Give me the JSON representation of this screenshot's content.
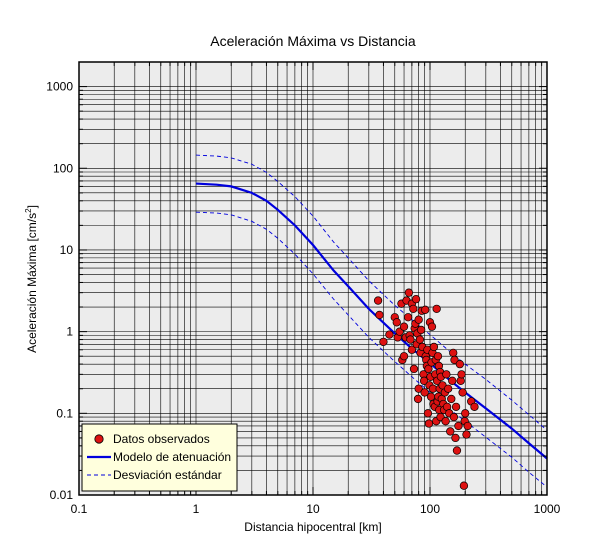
{
  "chart_data": {
    "type": "scatter",
    "title": "Aceleración Máxima vs Distancia",
    "xlabel": "Distancia hipocentral [km]",
    "ylabel_main": "Aceleración Máxima [cm/s",
    "ylabel_sup": "2",
    "ylabel_close": "]",
    "xscale": "log",
    "yscale": "log",
    "xlim": [
      0.1,
      1000
    ],
    "ylim": [
      0.01,
      2000
    ],
    "grid": true,
    "legend_position": "bottom-left",
    "x_ticks": [
      {
        "value": 0.1,
        "label": "0.1"
      },
      {
        "value": 1,
        "label": "1"
      },
      {
        "value": 10,
        "label": "10"
      },
      {
        "value": 100,
        "label": "100"
      },
      {
        "value": 1000,
        "label": "1000"
      }
    ],
    "y_ticks": [
      {
        "value": 0.01,
        "label": "0.01"
      },
      {
        "value": 0.1,
        "label": "0.1"
      },
      {
        "value": 1,
        "label": "1"
      },
      {
        "value": 10,
        "label": "10"
      },
      {
        "value": 100,
        "label": "100"
      },
      {
        "value": 1000,
        "label": "1000"
      }
    ],
    "colors": {
      "plot_background": "#ececec",
      "points": "#dd1111",
      "model": "#0000dd",
      "deviation": "#0000dd",
      "legend_background": "#ffffdd"
    },
    "series": [
      {
        "name": "Datos observados",
        "kind": "points",
        "points": [
          [
            36,
            2.4
          ],
          [
            37,
            1.6
          ],
          [
            40,
            0.75
          ],
          [
            45,
            0.92
          ],
          [
            50,
            1.5
          ],
          [
            52,
            1.3
          ],
          [
            53,
            0.85
          ],
          [
            55,
            1.0
          ],
          [
            57,
            2.2
          ],
          [
            58,
            0.45
          ],
          [
            60,
            0.5
          ],
          [
            60,
            1.15
          ],
          [
            62,
            0.85
          ],
          [
            63,
            2.4
          ],
          [
            65,
            1.5
          ],
          [
            66,
            3.0
          ],
          [
            67,
            0.9
          ],
          [
            68,
            0.8
          ],
          [
            70,
            2.2
          ],
          [
            70,
            0.6
          ],
          [
            72,
            1.9
          ],
          [
            73,
            0.35
          ],
          [
            74,
            1.1
          ],
          [
            75,
            1.25
          ],
          [
            76,
            2.5
          ],
          [
            77,
            0.7
          ],
          [
            78,
            0.95
          ],
          [
            79,
            0.15
          ],
          [
            80,
            1.4
          ],
          [
            80,
            0.2
          ],
          [
            82,
            0.8
          ],
          [
            83,
            0.55
          ],
          [
            84,
            1.05
          ],
          [
            85,
            1.8
          ],
          [
            86,
            0.65
          ],
          [
            88,
            0.3
          ],
          [
            89,
            0.25
          ],
          [
            90,
            0.18
          ],
          [
            91,
            1.85
          ],
          [
            92,
            0.5
          ],
          [
            93,
            0.45
          ],
          [
            94,
            0.38
          ],
          [
            95,
            0.6
          ],
          [
            96,
            0.1
          ],
          [
            97,
            0.35
          ],
          [
            98,
            0.075
          ],
          [
            99,
            0.22
          ],
          [
            100,
            1.3
          ],
          [
            101,
            0.28
          ],
          [
            102,
            0.16
          ],
          [
            103,
            0.42
          ],
          [
            104,
            1.15
          ],
          [
            105,
            0.55
          ],
          [
            106,
            0.2
          ],
          [
            107,
            0.13
          ],
          [
            108,
            0.65
          ],
          [
            110,
            0.12
          ],
          [
            111,
            0.3
          ],
          [
            112,
            0.45
          ],
          [
            113,
            0.08
          ],
          [
            114,
            1.9
          ],
          [
            115,
            0.25
          ],
          [
            116,
            0.14
          ],
          [
            117,
            0.5
          ],
          [
            118,
            0.16
          ],
          [
            119,
            0.38
          ],
          [
            120,
            0.11
          ],
          [
            121,
            0.2
          ],
          [
            122,
            0.32
          ],
          [
            123,
            0.09
          ],
          [
            124,
            0.28
          ],
          [
            126,
            0.15
          ],
          [
            128,
            0.22
          ],
          [
            130,
            0.13
          ],
          [
            132,
            0.11
          ],
          [
            134,
            0.18
          ],
          [
            136,
            0.08
          ],
          [
            138,
            0.3
          ],
          [
            140,
            0.12
          ],
          [
            143,
            0.2
          ],
          [
            146,
            0.1
          ],
          [
            149,
            0.06
          ],
          [
            152,
            0.15
          ],
          [
            155,
            0.25
          ],
          [
            158,
            0.55
          ],
          [
            160,
            0.09
          ],
          [
            162,
            0.45
          ],
          [
            165,
            0.05
          ],
          [
            167,
            0.12
          ],
          [
            170,
            0.035
          ],
          [
            175,
            0.07
          ],
          [
            180,
            0.4
          ],
          [
            183,
            0.25
          ],
          [
            186,
            0.3
          ],
          [
            190,
            0.18
          ],
          [
            195,
            0.013
          ],
          [
            198,
            0.08
          ],
          [
            200,
            0.1
          ],
          [
            205,
            0.055
          ],
          [
            210,
            0.07
          ],
          [
            225,
            0.14
          ],
          [
            240,
            0.12
          ]
        ]
      },
      {
        "name": "Modelo de atenuación",
        "kind": "line",
        "x": [
          1,
          1.5,
          2,
          3,
          4,
          5,
          7,
          10,
          15,
          20,
          30,
          50,
          70,
          100,
          150,
          200,
          300,
          500,
          700,
          1000
        ],
        "y": [
          65,
          63,
          60,
          50,
          40,
          31,
          20,
          11.5,
          5.6,
          3.6,
          1.9,
          0.95,
          0.62,
          0.41,
          0.25,
          0.18,
          0.115,
          0.065,
          0.043,
          0.028
        ]
      },
      {
        "name": "Desviación estándar",
        "kind": "dashed",
        "upper": {
          "x": [
            1,
            1.5,
            2,
            3,
            4,
            5,
            7,
            10,
            15,
            20,
            30,
            50,
            70,
            100,
            150,
            200,
            300,
            500,
            700,
            1000
          ],
          "y": [
            145,
            141,
            134,
            112,
            89,
            69,
            45,
            26,
            12.5,
            8.0,
            4.2,
            2.1,
            1.4,
            0.92,
            0.56,
            0.4,
            0.26,
            0.145,
            0.096,
            0.062
          ]
        },
        "lower": {
          "x": [
            1,
            1.5,
            2,
            3,
            4,
            5,
            7,
            10,
            15,
            20,
            30,
            50,
            70,
            100,
            150,
            200,
            300,
            500,
            700,
            1000
          ],
          "y": [
            29,
            28.3,
            26.9,
            22.4,
            17.9,
            13.9,
            8.9,
            5.1,
            2.5,
            1.6,
            0.85,
            0.43,
            0.28,
            0.18,
            0.11,
            0.08,
            0.051,
            0.029,
            0.019,
            0.0125
          ]
        }
      }
    ]
  }
}
